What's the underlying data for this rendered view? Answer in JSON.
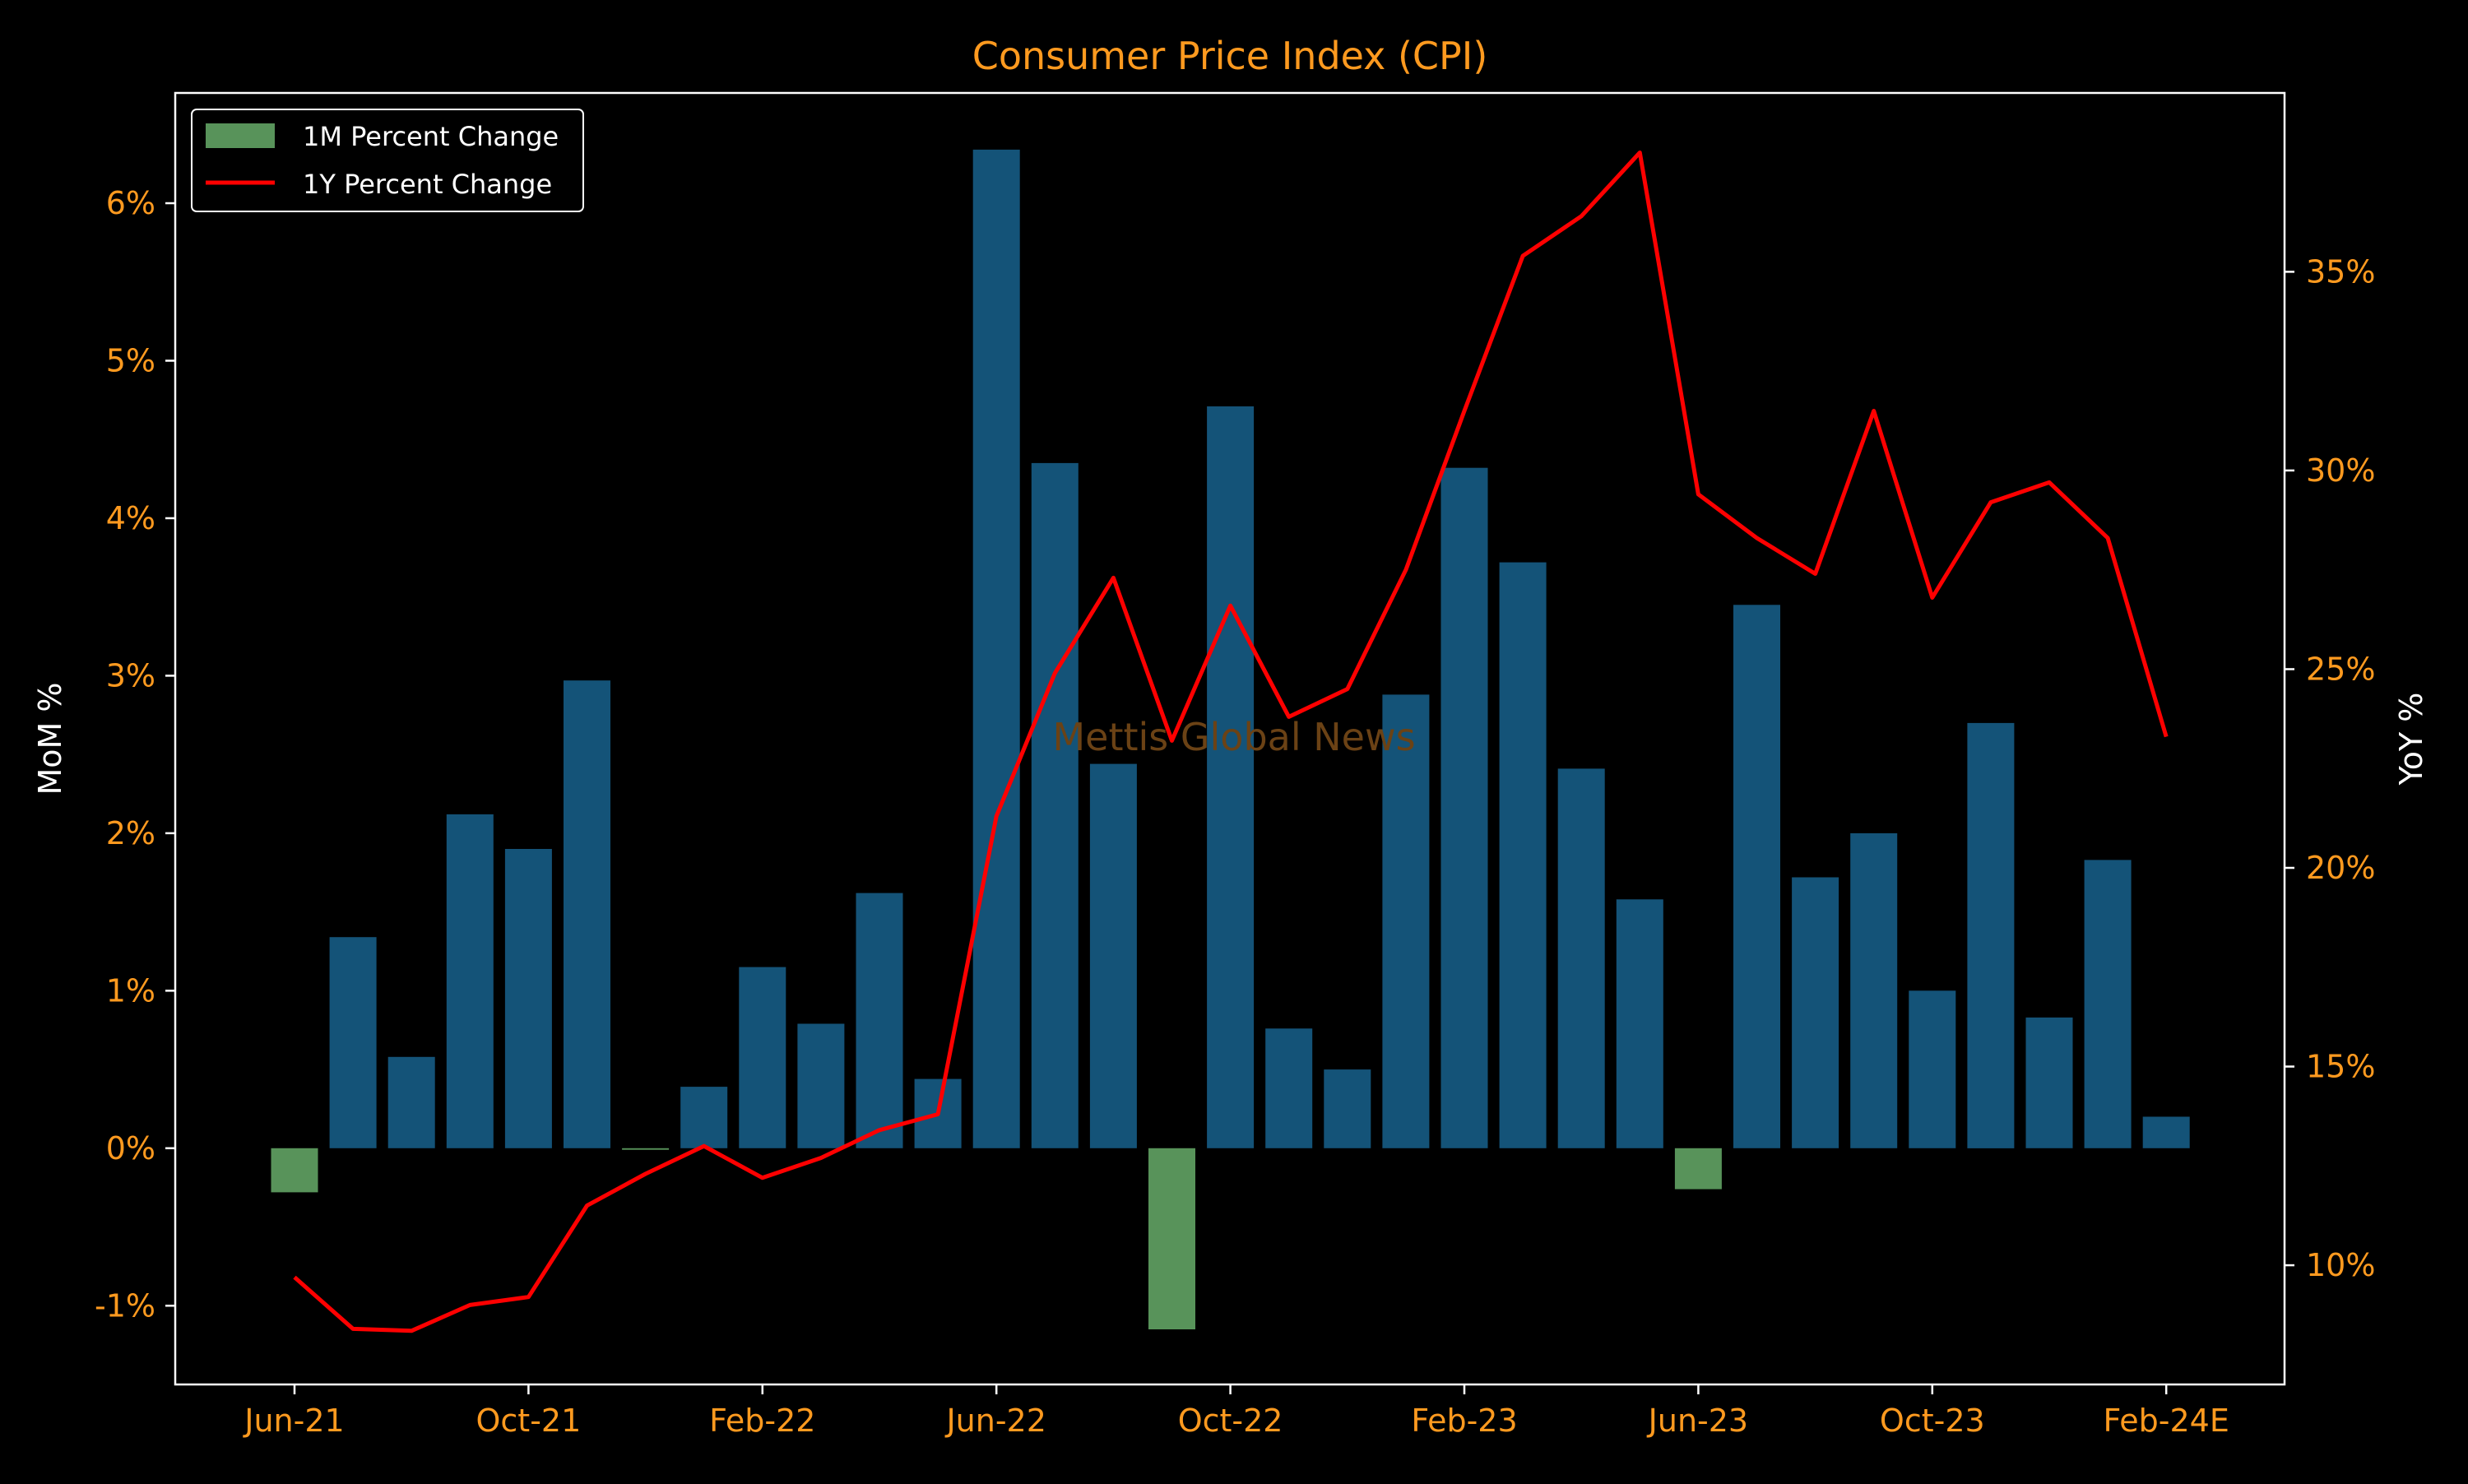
{
  "chart_data": {
    "type": "bar",
    "title": "Consumer Price Index (CPI)",
    "ylabel_left": "MoM %",
    "ylabel_right": "YoY %",
    "watermark": "Mettis Global News",
    "ylim_left": [
      -1.5,
      6.7
    ],
    "ylim_right": [
      7.0,
      39.5
    ],
    "left_ticks": [
      -1,
      0,
      1,
      2,
      3,
      4,
      5,
      6
    ],
    "left_tick_labels": [
      "-1%",
      "0%",
      "1%",
      "2%",
      "3%",
      "4%",
      "5%",
      "6%"
    ],
    "right_ticks": [
      10,
      15,
      20,
      25,
      30,
      35
    ],
    "right_tick_labels": [
      "10%",
      "15%",
      "20%",
      "25%",
      "30%",
      "35%"
    ],
    "x_tick_indices": [
      0,
      4,
      8,
      12,
      16,
      20,
      24,
      28,
      32
    ],
    "x_tick_labels": [
      "Jun-21",
      "Oct-21",
      "Feb-22",
      "Jun-22",
      "Oct-22",
      "Feb-23",
      "Jun-23",
      "Oct-23",
      "Feb-24E"
    ],
    "categories": [
      "Jun-21",
      "Jul-21",
      "Aug-21",
      "Sep-21",
      "Oct-21",
      "Nov-21",
      "Dec-21",
      "Jan-22",
      "Feb-22",
      "Mar-22",
      "Apr-22",
      "May-22",
      "Jun-22",
      "Jul-22",
      "Aug-22",
      "Sep-22",
      "Oct-22",
      "Nov-22",
      "Dec-22",
      "Jan-23",
      "Feb-23",
      "Mar-23",
      "Apr-23",
      "May-23",
      "Jun-23",
      "Jul-23",
      "Aug-23",
      "Sep-23",
      "Oct-23",
      "Nov-23",
      "Dec-23",
      "Jan-24",
      "Feb-24E"
    ],
    "series": [
      {
        "name": "1M Percent Change",
        "kind": "bar",
        "values": [
          -0.28,
          1.34,
          0.58,
          2.12,
          1.9,
          2.97,
          -0.01,
          0.39,
          1.15,
          0.79,
          1.62,
          0.44,
          6.34,
          4.35,
          2.44,
          -1.15,
          4.71,
          0.76,
          0.5,
          2.88,
          4.32,
          3.72,
          2.41,
          1.58,
          -0.26,
          3.45,
          1.72,
          2.0,
          1.0,
          2.7,
          0.83,
          1.83,
          0.2
        ]
      },
      {
        "name": "1Y Percent Change",
        "kind": "line",
        "values": [
          9.7,
          8.4,
          8.35,
          9.0,
          9.2,
          11.5,
          12.3,
          13.0,
          12.2,
          12.7,
          13.4,
          13.8,
          21.3,
          24.9,
          27.3,
          23.2,
          26.6,
          23.8,
          24.5,
          27.5,
          31.5,
          35.4,
          36.4,
          38.0,
          29.4,
          28.3,
          27.4,
          31.5,
          26.8,
          29.2,
          29.7,
          28.3,
          23.3
        ]
      }
    ],
    "legend_position": "upper-left",
    "grid": false,
    "colors": {
      "background": "#000000",
      "bar_positive": "#145378",
      "bar_negative": "#58935a",
      "line": "#ff0000",
      "tick_text": "#ff9a1f",
      "title": "#ff9a1f",
      "label": "#ffffff",
      "axes": "#ffffff",
      "watermark": "#6b4215"
    }
  }
}
